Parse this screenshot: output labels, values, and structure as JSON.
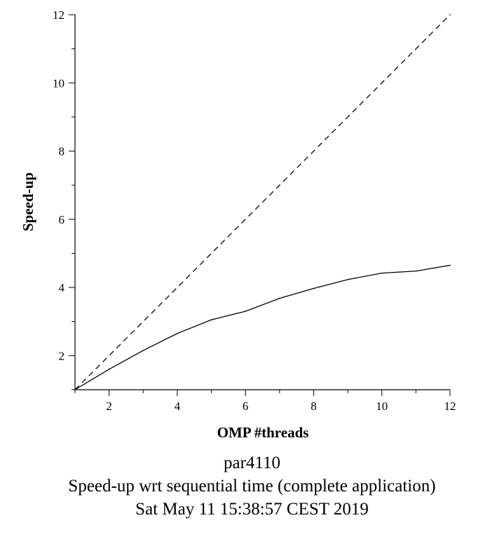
{
  "chart_data": {
    "type": "line",
    "xlabel": "OMP #threads",
    "ylabel": "Speed-up",
    "xlim": [
      1,
      12
    ],
    "ylim": [
      1,
      12
    ],
    "x_ticks": [
      2,
      4,
      6,
      8,
      10,
      12
    ],
    "y_ticks": [
      2,
      4,
      6,
      8,
      10,
      12
    ],
    "grid": false,
    "series": [
      {
        "style": "dashed",
        "x": [
          1,
          12
        ],
        "values": [
          1,
          12
        ]
      },
      {
        "style": "solid",
        "x": [
          1,
          2,
          3,
          4,
          5,
          6,
          7,
          8,
          9,
          10,
          11,
          12
        ],
        "values": [
          1.0,
          1.6,
          2.15,
          2.65,
          3.05,
          3.3,
          3.68,
          3.97,
          4.23,
          4.42,
          4.48,
          4.65
        ]
      }
    ]
  },
  "captions": {
    "line1": "par4110",
    "line2": "Speed-up wrt sequential time (complete application)",
    "line3": "Sat May 11 15:38:57 CEST 2019"
  }
}
